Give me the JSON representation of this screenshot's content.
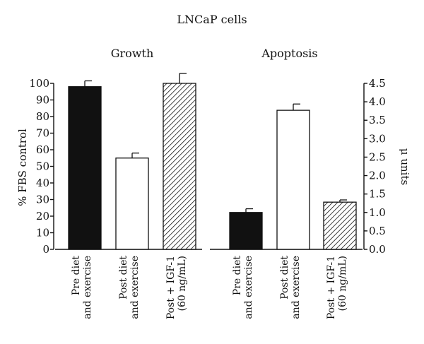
{
  "chart_data": {
    "type": "bar",
    "title": "LNCaP cells",
    "panels": [
      {
        "title": "Growth",
        "ylabel": "% FBS control",
        "ylim": [
          0,
          100
        ],
        "yticks": [
          "0",
          "10",
          "20",
          "30",
          "40",
          "50",
          "60",
          "70",
          "80",
          "90",
          "100"
        ],
        "axis_side": "left",
        "bars": [
          {
            "category": "Pre diet and exercise",
            "lines": [
              "Pre diet",
              "and exercise"
            ],
            "value": 98,
            "error": 3.5,
            "fill": "solid-black"
          },
          {
            "category": "Post diet and exercise",
            "lines": [
              "Post diet",
              "and exercise"
            ],
            "value": 55,
            "error": 3,
            "fill": "white"
          },
          {
            "category": "Post + IGF-1 (60 ng/mL)",
            "lines": [
              "Post + IGF-1",
              "(60 ng/mL)"
            ],
            "value": 100,
            "error": 6,
            "fill": "hatched"
          }
        ]
      },
      {
        "title": "Apoptosis",
        "ylabel": "μ units",
        "ylim": [
          0,
          4.5
        ],
        "yticks": [
          "0.0",
          "0.5",
          "1.0",
          "1.5",
          "2.0",
          "2.5",
          "3.0",
          "3.5",
          "4.0",
          "4.5"
        ],
        "axis_side": "right",
        "bars": [
          {
            "category": "Pre diet and exercise",
            "lines": [
              "Pre diet",
              "and exercise"
            ],
            "value": 1.0,
            "error": 0.1,
            "fill": "solid-black"
          },
          {
            "category": "Post diet and exercise",
            "lines": [
              "Post diet",
              "and exercise"
            ],
            "value": 3.77,
            "error": 0.17,
            "fill": "white"
          },
          {
            "category": "Post + IGF-1 (60 ng/mL)",
            "lines": [
              "Post + IGF-1",
              "(60 ng/mL)"
            ],
            "value": 1.28,
            "error": 0.06,
            "fill": "hatched"
          }
        ]
      }
    ]
  },
  "colors": {
    "ink": "#111111",
    "background": "#ffffff"
  }
}
